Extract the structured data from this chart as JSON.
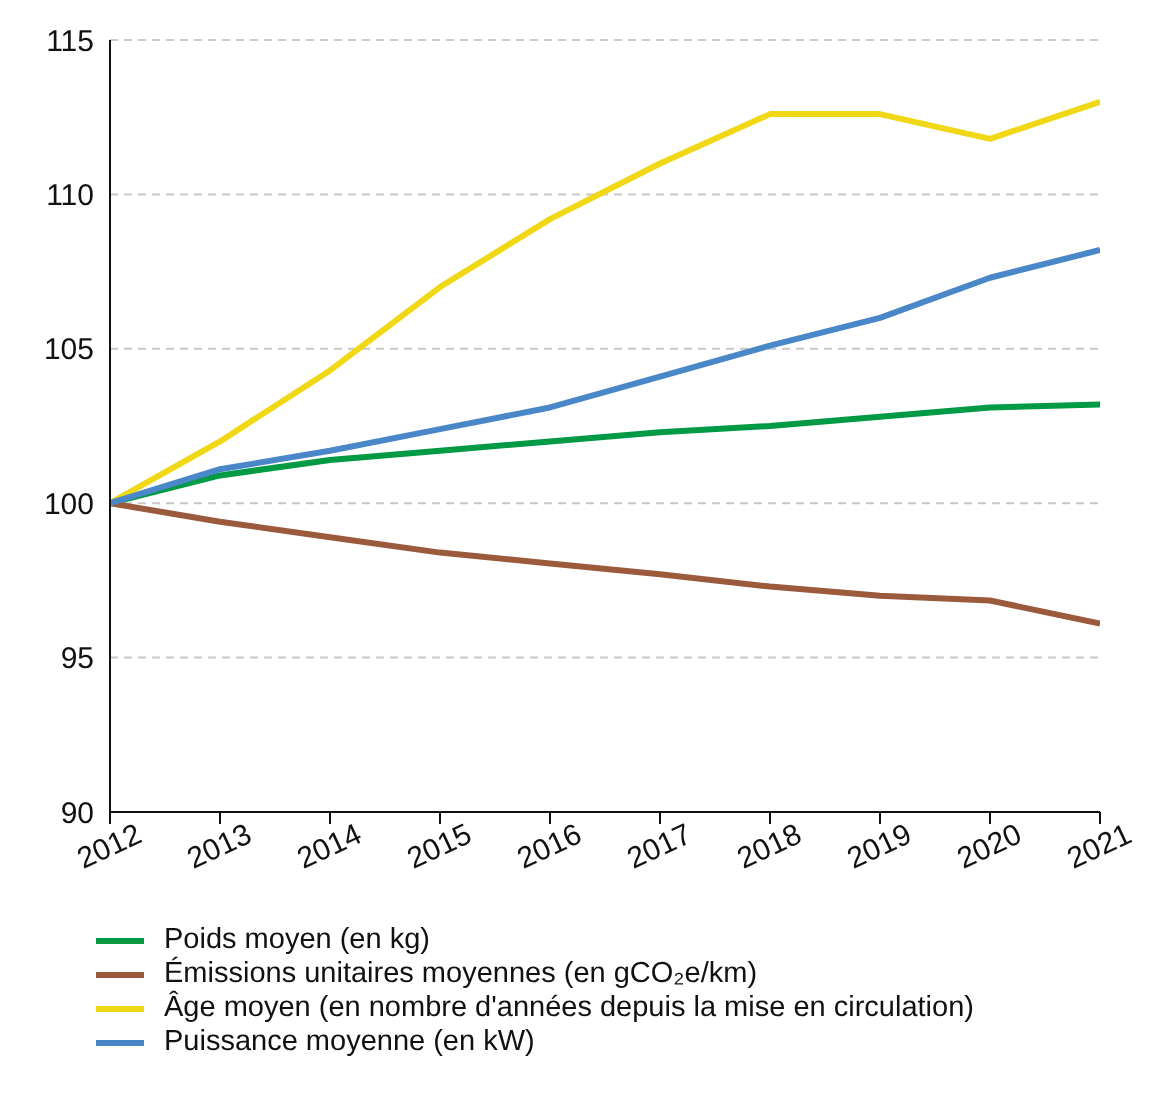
{
  "chart_data": {
    "type": "line",
    "x": [
      2012,
      2013,
      2014,
      2015,
      2016,
      2017,
      2018,
      2019,
      2020,
      2021
    ],
    "xlim": [
      2012,
      2021
    ],
    "xticks": [
      2012,
      2013,
      2014,
      2015,
      2016,
      2017,
      2018,
      2019,
      2020,
      2021
    ],
    "ylim": [
      90,
      115
    ],
    "yticks": [
      90,
      95,
      100,
      105,
      110,
      115
    ],
    "grid": "y",
    "legend": "bottom",
    "marker": "none",
    "line_style": "solid",
    "series": [
      {
        "name": "Poids moyen (en kg)",
        "color": "#009a44",
        "values": [
          100,
          100.9,
          101.4,
          101.7,
          102.0,
          102.3,
          102.5,
          102.8,
          103.1,
          103.2
        ]
      },
      {
        "name": "Émissions unitaires moyennes (en gCO₂e/km)",
        "color": "#9b5a3c",
        "values": [
          100,
          99.4,
          98.9,
          98.4,
          98.05,
          97.7,
          97.3,
          97.0,
          96.85,
          96.1
        ]
      },
      {
        "name": "Âge moyen (en nombre d'années depuis la mise en circulation)",
        "color": "#f0d817",
        "values": [
          100,
          102.0,
          104.3,
          107.0,
          109.2,
          111.0,
          112.6,
          112.6,
          111.8,
          113.0
        ]
      },
      {
        "name": "Puissance moyenne (en kW)",
        "color": "#4a87c8",
        "values": [
          100,
          101.1,
          101.7,
          102.4,
          103.1,
          104.1,
          105.1,
          106.0,
          107.3,
          108.2
        ]
      }
    ]
  }
}
